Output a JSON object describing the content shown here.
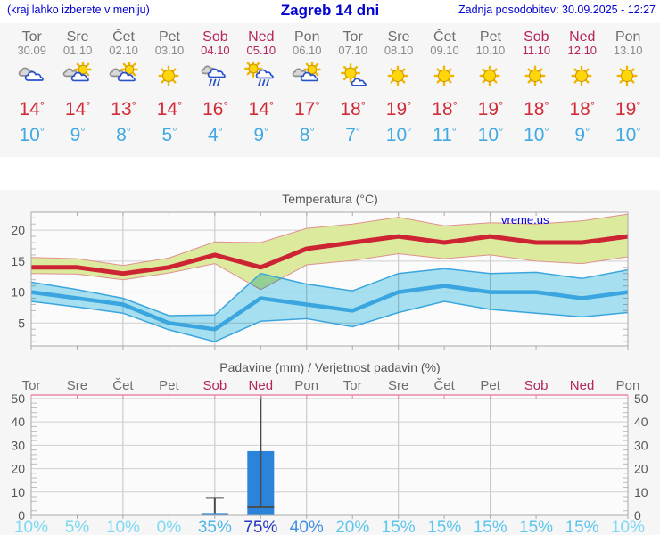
{
  "header": {
    "left_note": "(kraj lahko izberete v meniju)",
    "title": "Zagreb 14 dni",
    "updated": "Zadnja posodobitev: 30.09.2025 - 12:27"
  },
  "colors": {
    "accent_blue": "#0202cf",
    "weekend": "#b5245e",
    "weekday": "#6e6e6e",
    "date_gray": "#8a8a8a",
    "tmax_red": "#d22c38",
    "tmin_blue": "#41a9e2",
    "bar_blue": "#2b84d9"
  },
  "forecast": {
    "degree_symbol": "°",
    "days": [
      {
        "name": "Tor",
        "date": "30.09",
        "weekend": false,
        "icon": "cloudy",
        "tmax": "14",
        "tmin": "10"
      },
      {
        "name": "Sre",
        "date": "01.10",
        "weekend": false,
        "icon": "partly-cloudy",
        "tmax": "14",
        "tmin": "9"
      },
      {
        "name": "Čet",
        "date": "02.10",
        "weekend": false,
        "icon": "partly-cloudy",
        "tmax": "13",
        "tmin": "8"
      },
      {
        "name": "Pet",
        "date": "03.10",
        "weekend": false,
        "icon": "sunny",
        "tmax": "14",
        "tmin": "5"
      },
      {
        "name": "Sob",
        "date": "04.10",
        "weekend": true,
        "icon": "rain",
        "tmax": "16",
        "tmin": "4"
      },
      {
        "name": "Ned",
        "date": "05.10",
        "weekend": true,
        "icon": "sun-showers",
        "tmax": "14",
        "tmin": "9"
      },
      {
        "name": "Pon",
        "date": "06.10",
        "weekend": false,
        "icon": "partly-cloudy",
        "tmax": "17",
        "tmin": "8"
      },
      {
        "name": "Tor",
        "date": "07.10",
        "weekend": false,
        "icon": "mostly-sunny",
        "tmax": "18",
        "tmin": "7"
      },
      {
        "name": "Sre",
        "date": "08.10",
        "weekend": false,
        "icon": "sunny",
        "tmax": "19",
        "tmin": "10"
      },
      {
        "name": "Čet",
        "date": "09.10",
        "weekend": false,
        "icon": "sunny",
        "tmax": "18",
        "tmin": "11"
      },
      {
        "name": "Pet",
        "date": "10.10",
        "weekend": false,
        "icon": "sunny",
        "tmax": "19",
        "tmin": "10"
      },
      {
        "name": "Sob",
        "date": "11.10",
        "weekend": true,
        "icon": "sunny",
        "tmax": "18",
        "tmin": "10"
      },
      {
        "name": "Ned",
        "date": "12.10",
        "weekend": true,
        "icon": "sunny",
        "tmax": "18",
        "tmin": "9"
      },
      {
        "name": "Pon",
        "date": "13.10",
        "weekend": false,
        "icon": "sunny",
        "tmax": "19",
        "tmin": "10"
      }
    ]
  },
  "chart_data": [
    {
      "type": "line",
      "title": "Temperatura (°C)",
      "watermark": "vreme.us",
      "x_labels": [
        "Tor",
        "Sre",
        "Čet",
        "Pet",
        "Sob",
        "Ned",
        "Pon",
        "Tor",
        "Sre",
        "Čet",
        "Pet",
        "Sob",
        "Ned",
        "Pon"
      ],
      "weekend_flags": [
        false,
        false,
        false,
        false,
        true,
        true,
        false,
        false,
        false,
        false,
        false,
        true,
        true,
        false
      ],
      "ylim": [
        1.3,
        22.9
      ],
      "yticks": [
        5,
        10,
        15,
        20
      ],
      "grid": true,
      "series": [
        {
          "name": "max temperature",
          "line_color": "#cc2433",
          "band_fill": "#dcea9e",
          "band_edge": "#e09090",
          "values": [
            14,
            14,
            13,
            14,
            16,
            14,
            17,
            18,
            19,
            18,
            19,
            18,
            18,
            19
          ],
          "band_upper": [
            15.6,
            15.4,
            14.3,
            15.5,
            18.1,
            18.0,
            20.3,
            21.0,
            22.1,
            20.7,
            21.2,
            21.0,
            21.5,
            22.6
          ],
          "band_lower": [
            13.0,
            12.9,
            12.0,
            13.1,
            14.6,
            10.4,
            14.4,
            15.1,
            16.2,
            15.4,
            16.0,
            15.0,
            14.6,
            15.7
          ]
        },
        {
          "name": "min temperature",
          "line_color": "#3aa5df",
          "band_fill": "#a9e3f3",
          "band_edge": "#3aa5df",
          "values": [
            10,
            9,
            8,
            5,
            4,
            9,
            8,
            7,
            10,
            11,
            10,
            10,
            9,
            10
          ],
          "band_upper": [
            11.6,
            10.4,
            9.0,
            6.2,
            6.3,
            13.0,
            11.3,
            10.2,
            13.0,
            13.8,
            13.0,
            13.2,
            12.2,
            13.6
          ],
          "band_lower": [
            8.5,
            7.6,
            6.6,
            3.9,
            2.0,
            5.3,
            5.7,
            4.4,
            6.7,
            8.5,
            7.2,
            6.6,
            6.0,
            6.7
          ]
        }
      ]
    },
    {
      "type": "bar",
      "title": "Padavine (mm) / Verjetnost padavin (%)",
      "x_labels": [
        "Tor",
        "Sre",
        "Čet",
        "Pet",
        "Sob",
        "Ned",
        "Pon",
        "Tor",
        "Sre",
        "Čet",
        "Pet",
        "Sob",
        "Ned",
        "Pon"
      ],
      "weekend_flags": [
        false,
        false,
        false,
        false,
        true,
        true,
        false,
        false,
        false,
        false,
        false,
        true,
        true,
        false
      ],
      "ylim": [
        0,
        51.5
      ],
      "yticks": [
        0,
        10,
        20,
        30,
        40,
        50
      ],
      "bar_color": "#2b84d9",
      "values": [
        0,
        0,
        0,
        0,
        1,
        27.5,
        0,
        0,
        0,
        0,
        0,
        0,
        0,
        0
      ],
      "whiskers": [
        {
          "day_index": 4,
          "high": 7.5
        },
        {
          "day_index": 5,
          "low": 3.5,
          "high": 52
        }
      ],
      "probabilities": [
        {
          "label": "10%",
          "color": "#7ed9f2"
        },
        {
          "label": "5%",
          "color": "#7ed9f2"
        },
        {
          "label": "10%",
          "color": "#7ed9f2"
        },
        {
          "label": "0%",
          "color": "#7ed9f2"
        },
        {
          "label": "35%",
          "color": "#4fb6ea"
        },
        {
          "label": "75%",
          "color": "#2438c0"
        },
        {
          "label": "40%",
          "color": "#3f8fe2"
        },
        {
          "label": "20%",
          "color": "#5cc6ee"
        },
        {
          "label": "15%",
          "color": "#5cc6ee"
        },
        {
          "label": "15%",
          "color": "#5cc6ee"
        },
        {
          "label": "15%",
          "color": "#5cc6ee"
        },
        {
          "label": "15%",
          "color": "#5cc6ee"
        },
        {
          "label": "15%",
          "color": "#5cc6ee"
        },
        {
          "label": "10%",
          "color": "#7ed9f2"
        }
      ]
    }
  ]
}
